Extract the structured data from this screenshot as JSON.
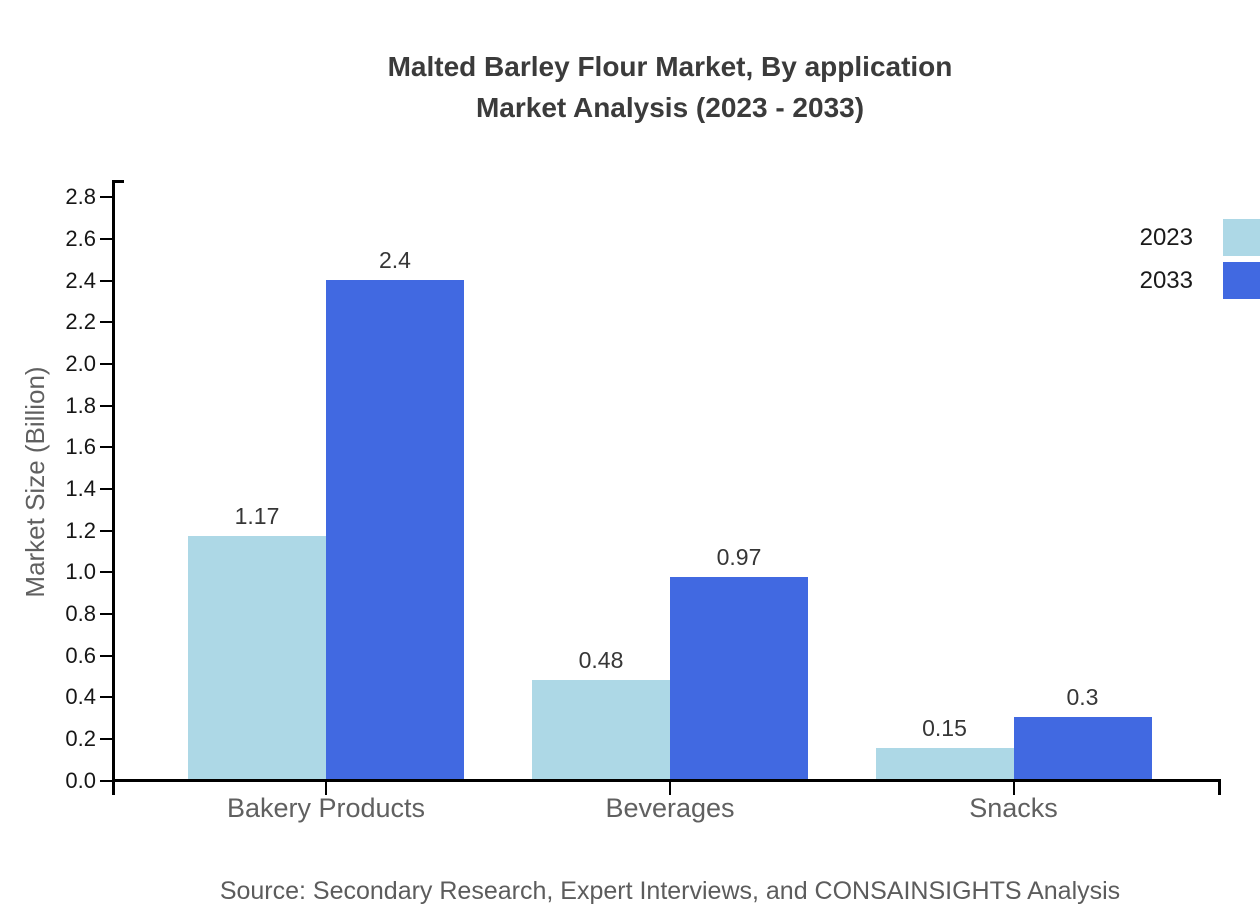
{
  "page": {
    "background": "#ffffff"
  },
  "chart_data": {
    "type": "bar",
    "title_lines": [
      "Malted Barley Flour Market, By application",
      "Market Analysis (2023 - 2033)"
    ],
    "ylabel": "Market Size (Billion)",
    "xlabel": "",
    "categories": [
      "Bakery Products",
      "Beverages",
      "Snacks"
    ],
    "series": [
      {
        "name": "2023",
        "color": "#ADD8E6",
        "values": [
          1.17,
          0.48,
          0.15
        ]
      },
      {
        "name": "2033",
        "color": "#4169E1",
        "values": [
          2.4,
          0.97,
          0.3
        ]
      }
    ],
    "ylim": [
      0,
      2.8
    ],
    "ytick_step": 0.2,
    "grid": false,
    "legend_position": "top-right",
    "bar_value_labels": true,
    "source_note": "Source: Secondary Research, Expert Interviews, and CONSAINSIGHTS Analysis"
  },
  "palette": {
    "title-color": "#3b3b3b",
    "tick-label-color": "#161616",
    "category-label-color": "#606060",
    "value-label-color": "#363636",
    "axis-color": "#000000",
    "ylabel-color": "#606060",
    "source-color": "#5c5c5c",
    "legend-text-color": "#1a1a1a"
  }
}
